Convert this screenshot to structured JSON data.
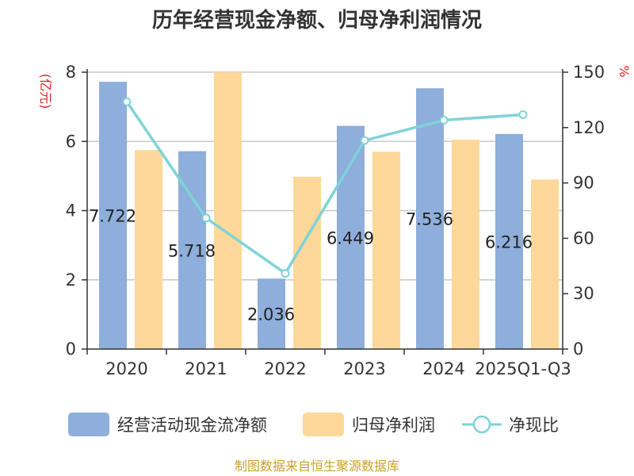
{
  "chart_data": {
    "type": "bar",
    "title": "历年经营现金净额、归母净利润情况",
    "categories": [
      "2020",
      "2021",
      "2022",
      "2023",
      "2024",
      "2025Q1-Q3"
    ],
    "left_unit": "(亿元)",
    "right_unit": "%",
    "ylim_left": [
      0,
      8
    ],
    "ylim_right": [
      0,
      150
    ],
    "left_ticks": [
      0,
      2,
      4,
      6,
      8
    ],
    "right_ticks": [
      0,
      30,
      60,
      90,
      120,
      150
    ],
    "grid": true,
    "legend_position": "bottom",
    "series": [
      {
        "name": "经营活动现金流净额",
        "type": "bar",
        "axis": "left",
        "color": "#8eaedb",
        "values": [
          7.722,
          5.718,
          2.036,
          6.449,
          7.536,
          6.216
        ],
        "labels": [
          "7.722",
          "5.718",
          "2.036",
          "6.449",
          "7.536",
          "6.216"
        ]
      },
      {
        "name": "归母净利润",
        "type": "bar",
        "axis": "left",
        "color": "#fdd89a",
        "values": [
          5.75,
          8.0,
          4.98,
          5.7,
          6.05,
          4.9
        ]
      },
      {
        "name": "净现比",
        "type": "line",
        "axis": "right",
        "color": "#7fd3d8",
        "values": [
          134,
          71,
          41,
          113,
          124,
          127
        ]
      }
    ]
  },
  "source": "制图数据来自恒生聚源数据库"
}
